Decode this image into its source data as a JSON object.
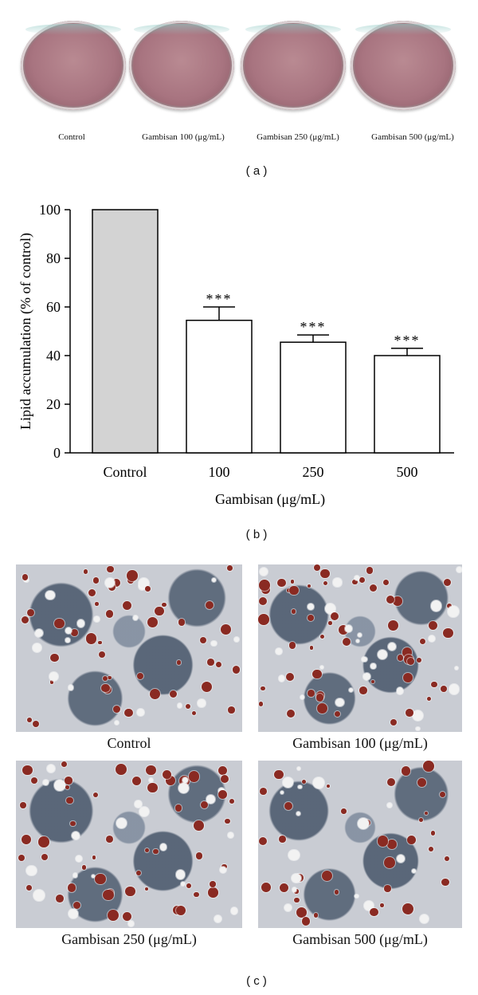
{
  "panel_a": {
    "labels": [
      "Control",
      "Gambisan 100 (μg/mL)",
      "Gambisan 250 (μg/mL)",
      "Gambisan 500 (μg/mL)"
    ],
    "letter": "( a )"
  },
  "panel_b": {
    "letter": "( b )"
  },
  "panel_c": {
    "captions": [
      "Control",
      "Gambisan 100 (μg/mL)",
      "Gambisan 250 (μg/mL)",
      "Gambisan 500 (μg/mL)"
    ],
    "letter": "( c )"
  },
  "chart_data": {
    "type": "bar",
    "categories": [
      "Control",
      "100",
      "250",
      "500"
    ],
    "values": [
      100,
      54.5,
      45.5,
      40
    ],
    "errors": [
      0,
      5.5,
      3,
      3
    ],
    "significance": [
      "",
      "***",
      "***",
      "***"
    ],
    "bar_colors": [
      "#d3d3d3",
      "#ffffff",
      "#ffffff",
      "#ffffff"
    ],
    "xlabel": "Gambisan (μg/mL)",
    "ylabel": "Lipid accumulation (% of control)",
    "ylim": [
      0,
      100
    ],
    "yticks": [
      0,
      20,
      40,
      60,
      80,
      100
    ],
    "grid": false,
    "legend": "none"
  }
}
